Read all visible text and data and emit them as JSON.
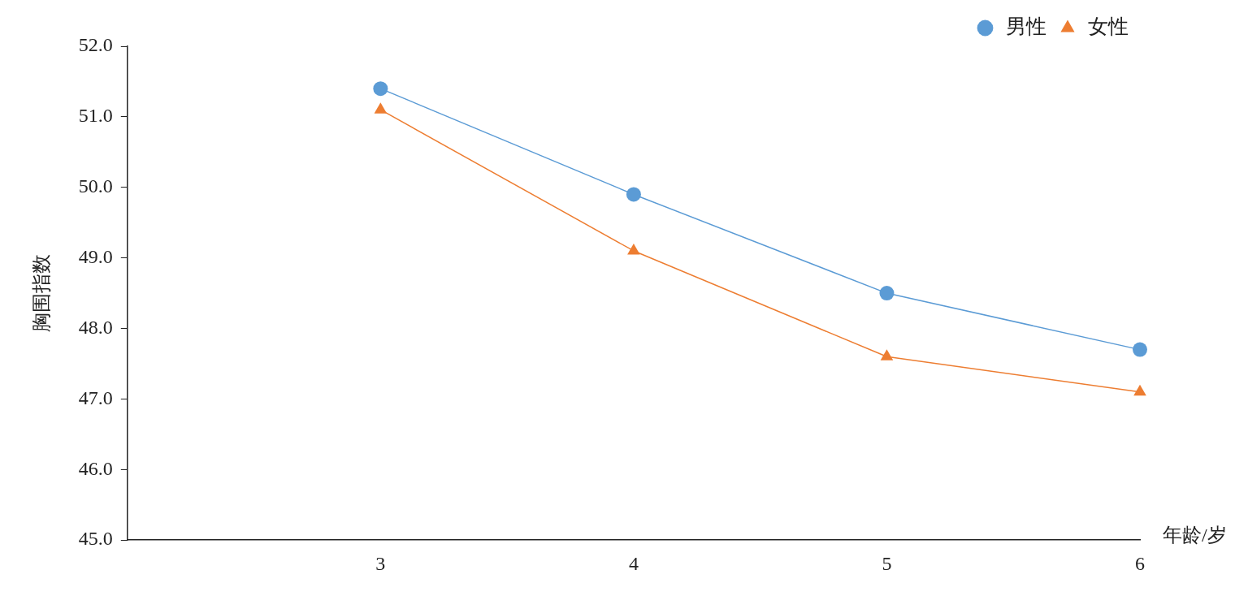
{
  "chart_data": {
    "type": "line",
    "ylabel": "胸围指数",
    "xlabel": "年龄/岁",
    "x": [
      3,
      4,
      5,
      6
    ],
    "xlim": [
      2,
      6
    ],
    "xticks": [
      3,
      4,
      5,
      6
    ],
    "ylim": [
      45,
      52
    ],
    "yticks": [
      {
        "value": 45,
        "label": "45.0"
      },
      {
        "value": 46,
        "label": "46.0"
      },
      {
        "value": 47,
        "label": "47.0"
      },
      {
        "value": 48,
        "label": "48.0"
      },
      {
        "value": 49,
        "label": "49.0"
      },
      {
        "value": 50,
        "label": "50.0"
      },
      {
        "value": 51,
        "label": "51.0"
      },
      {
        "value": 52,
        "label": "52.0"
      }
    ],
    "grid": false,
    "legend": "top right",
    "line_style": "solid",
    "series": [
      {
        "name": "男性",
        "color": "#5b9bd5",
        "marker": "circle",
        "values": [
          51.4,
          49.9,
          48.5,
          47.7
        ]
      },
      {
        "name": "女性",
        "color": "#ed7d31",
        "marker": "triangle",
        "values": [
          51.1,
          49.1,
          47.6,
          47.1
        ]
      }
    ]
  }
}
